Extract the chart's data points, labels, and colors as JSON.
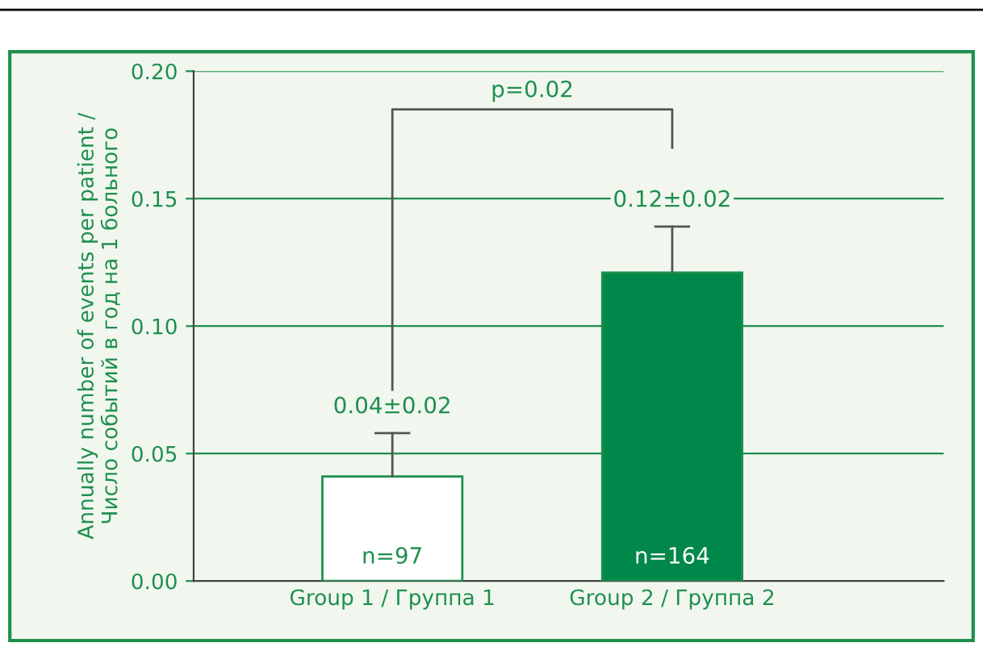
{
  "chart_data": {
    "type": "bar",
    "ylabel": "Annually number of events per patient /\nЧисло событий в год на 1 больного",
    "categories": [
      "Group 1 / Группа 1",
      "Group 2 / Группа 2"
    ],
    "values": [
      0.041,
      0.121
    ],
    "colors": [
      "#ffffff",
      "#00874a"
    ],
    "errors": [
      [
        0.041,
        0.058
      ],
      [
        0.121,
        0.139
      ]
    ],
    "value_labels": [
      "0.04±0.02",
      "0.12±0.02"
    ],
    "annotations": [
      "p=0.02",
      "n=97",
      "n=164"
    ],
    "ylim": [
      0,
      0.2
    ],
    "yticks": [
      {
        "value": 0,
        "label": "0.00"
      },
      {
        "value": 0.05,
        "label": "0.05"
      },
      {
        "value": 0.1,
        "label": "0.10"
      },
      {
        "value": 0.15,
        "label": "0.15"
      },
      {
        "value": 0.2,
        "label": "0.20"
      }
    ],
    "grid": "y"
  }
}
